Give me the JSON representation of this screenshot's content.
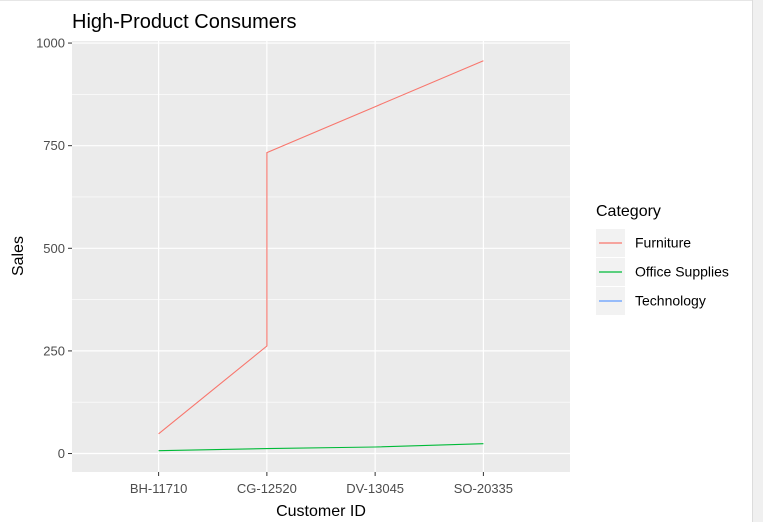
{
  "chart_data": {
    "type": "line",
    "title": "High-Product Consumers",
    "xlabel": "Customer ID",
    "ylabel": "Sales",
    "categories": [
      "BH-11710",
      "CG-12520",
      "DV-13045",
      "SO-20335"
    ],
    "ylim": [
      -45,
      1005
    ],
    "yticks": [
      0,
      250,
      500,
      750,
      1000
    ],
    "grid": true,
    "legend": {
      "title": "Category",
      "placement": "right"
    },
    "series": [
      {
        "name": "Furniture",
        "color": "#F8766D",
        "points": [
          {
            "x": "BH-11710",
            "y": 48
          },
          {
            "x": "CG-12520",
            "y": 262
          },
          {
            "x": "CG-12520",
            "y": 733
          },
          {
            "x": "DV-13045",
            "y": 845
          },
          {
            "x": "SO-20335",
            "y": 957
          }
        ]
      },
      {
        "name": "Office Supplies",
        "color": "#00BA38",
        "points": [
          {
            "x": "BH-11710",
            "y": 7
          },
          {
            "x": "CG-12520",
            "y": 12
          },
          {
            "x": "DV-13045",
            "y": 16
          },
          {
            "x": "SO-20335",
            "y": 24
          }
        ]
      },
      {
        "name": "Technology",
        "color": "#619CFF",
        "points": []
      }
    ]
  }
}
